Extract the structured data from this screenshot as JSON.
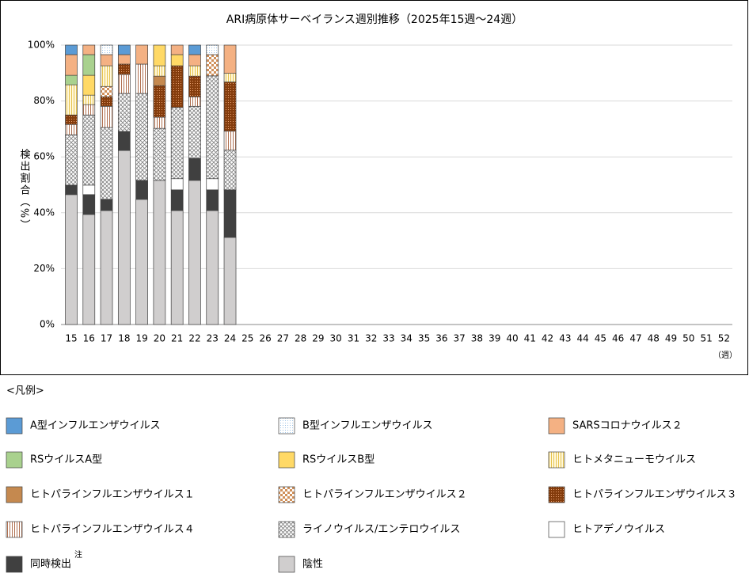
{
  "chart_data": {
    "type": "stacked_bar",
    "title": "ARI病原体サーベイランス週別推移（2025年15週～24週）",
    "y_label": "検出割合（%）",
    "x_unit": "（週）",
    "legend_title": "<凡例>",
    "legend_note": "注",
    "categories": [
      "15",
      "16",
      "17",
      "18",
      "19",
      "20",
      "21",
      "22",
      "23",
      "24",
      "25",
      "26",
      "27",
      "28",
      "29",
      "30",
      "31",
      "32",
      "33",
      "34",
      "35",
      "36",
      "37",
      "38",
      "39",
      "40",
      "41",
      "42",
      "43",
      "44",
      "45",
      "46",
      "47",
      "48",
      "49",
      "50",
      "51",
      "52"
    ],
    "ylim": [
      0,
      100
    ],
    "yticks": [
      {
        "value": 0,
        "label": "0%"
      },
      {
        "value": 20,
        "label": "20%"
      },
      {
        "value": 40,
        "label": "40%"
      },
      {
        "value": 60,
        "label": "60%"
      },
      {
        "value": 80,
        "label": "80%"
      },
      {
        "value": 100,
        "label": "100%"
      }
    ],
    "grid": true,
    "series": [
      {
        "name": "A型インフルエンザウイルス",
        "color": "#5b9bd5",
        "pattern": "solid",
        "values": [
          3.4,
          null,
          null,
          3.4,
          null,
          null,
          null,
          3.4,
          null,
          null,
          null,
          null,
          null,
          null,
          null,
          null,
          null,
          null,
          null,
          null,
          null,
          null,
          null,
          null,
          null,
          null,
          null,
          null,
          null,
          null,
          null,
          null,
          null,
          null,
          null,
          null,
          null,
          null
        ]
      },
      {
        "name": "B型インフルエンザウイルス",
        "color": "#9dc3e6",
        "pattern": "dots",
        "values": [
          null,
          null,
          3.4,
          null,
          null,
          null,
          null,
          null,
          3.4,
          null,
          null,
          null,
          null,
          null,
          null,
          null,
          null,
          null,
          null,
          null,
          null,
          null,
          null,
          null,
          null,
          null,
          null,
          null,
          null,
          null,
          null,
          null,
          null,
          null,
          null,
          null,
          null,
          null
        ]
      },
      {
        "name": "SARSコロナウイルス２",
        "color": "#f4b183",
        "pattern": "solid",
        "values": [
          7.4,
          3.4,
          4,
          3.4,
          6.8,
          null,
          3.4,
          4,
          null,
          10.1,
          null,
          null,
          null,
          null,
          null,
          null,
          null,
          null,
          null,
          null,
          null,
          null,
          null,
          null,
          null,
          null,
          null,
          null,
          null,
          null,
          null,
          null,
          null,
          null,
          null,
          null,
          null,
          null
        ]
      },
      {
        "name": "RSウイルスA型",
        "color": "#a9d18e",
        "pattern": "solid",
        "values": [
          3.4,
          7.4,
          null,
          null,
          null,
          null,
          null,
          null,
          null,
          null,
          null,
          null,
          null,
          null,
          null,
          null,
          null,
          null,
          null,
          null,
          null,
          null,
          null,
          null,
          null,
          null,
          null,
          null,
          null,
          null,
          null,
          null,
          null,
          null,
          null,
          null,
          null,
          null
        ]
      },
      {
        "name": "RSウイルスB型",
        "color": "#ffd966",
        "pattern": "solid",
        "values": [
          null,
          7.1,
          null,
          null,
          null,
          7.4,
          4,
          null,
          null,
          null,
          null,
          null,
          null,
          null,
          null,
          null,
          null,
          null,
          null,
          null,
          null,
          null,
          null,
          null,
          null,
          null,
          null,
          null,
          null,
          null,
          null,
          null,
          null,
          null,
          null,
          null,
          null,
          null
        ]
      },
      {
        "name": "ヒトメタニューモウイルス",
        "color": "#e6c24c",
        "pattern": "vlines-light",
        "values": [
          10.8,
          3.4,
          7.4,
          null,
          null,
          3.7,
          null,
          3.7,
          null,
          3.1,
          null,
          null,
          null,
          null,
          null,
          null,
          null,
          null,
          null,
          null,
          null,
          null,
          null,
          null,
          null,
          null,
          null,
          null,
          null,
          null,
          null,
          null,
          null,
          null,
          null,
          null,
          null,
          null
        ]
      },
      {
        "name": "ヒトパラインフルエンザウイルス１",
        "color": "#c5894f",
        "pattern": "solid",
        "values": [
          null,
          null,
          null,
          null,
          null,
          3.4,
          null,
          null,
          null,
          null,
          null,
          null,
          null,
          null,
          null,
          null,
          null,
          null,
          null,
          null,
          null,
          null,
          null,
          null,
          null,
          null,
          null,
          null,
          null,
          null,
          null,
          null,
          null,
          null,
          null,
          null,
          null,
          null
        ]
      },
      {
        "name": "ヒトパラインフルエンザウイルス２",
        "color": "#d0905a",
        "pattern": "checker",
        "values": [
          null,
          null,
          3.7,
          null,
          null,
          null,
          null,
          null,
          7.6,
          null,
          null,
          null,
          null,
          null,
          null,
          null,
          null,
          null,
          null,
          null,
          null,
          null,
          null,
          null,
          null,
          null,
          null,
          null,
          null,
          null,
          null,
          null,
          null,
          null,
          null,
          null,
          null,
          null
        ]
      },
      {
        "name": "ヒトパラインフルエンザウイルス３",
        "color": "#843c0c",
        "pattern": "darkdots",
        "values": [
          3.4,
          null,
          3.4,
          3.7,
          null,
          11.3,
          14.9,
          7.4,
          null,
          17.6,
          null,
          null,
          null,
          null,
          null,
          null,
          null,
          null,
          null,
          null,
          null,
          null,
          null,
          null,
          null,
          null,
          null,
          null,
          null,
          null,
          null,
          null,
          null,
          null,
          null,
          null,
          null,
          null
        ]
      },
      {
        "name": "ヒトパラインフルエンザウイルス４",
        "color": "#b07050",
        "pattern": "vlines",
        "values": [
          3.7,
          3.7,
          7.6,
          6.8,
          10.5,
          4,
          null,
          3.4,
          null,
          6.8,
          null,
          null,
          null,
          null,
          null,
          null,
          null,
          null,
          null,
          null,
          null,
          null,
          null,
          null,
          null,
          null,
          null,
          null,
          null,
          null,
          null,
          null,
          null,
          null,
          null,
          null,
          null,
          null
        ]
      },
      {
        "name": "ライノウイルス/エンテロウイルス",
        "color": "#808080",
        "pattern": "cross",
        "values": [
          18,
          25.1,
          25.7,
          13.6,
          31.1,
          18.6,
          25.5,
          18.6,
          36.8,
          14.2,
          null,
          null,
          null,
          null,
          null,
          null,
          null,
          null,
          null,
          null,
          null,
          null,
          null,
          null,
          null,
          null,
          null,
          null,
          null,
          null,
          null,
          null,
          null,
          null,
          null,
          null,
          null,
          null
        ]
      },
      {
        "name": "ヒトアデノウイルス",
        "color": "#ffffff",
        "pattern": "solid",
        "values": [
          null,
          3.4,
          null,
          null,
          null,
          null,
          4,
          null,
          4,
          null,
          null,
          null,
          null,
          null,
          null,
          null,
          null,
          null,
          null,
          null,
          null,
          null,
          null,
          null,
          null,
          null,
          null,
          null,
          null,
          null,
          null,
          null,
          null,
          null,
          null,
          null,
          null,
          null
        ]
      },
      {
        "name": "同時検出",
        "color": "#404040",
        "pattern": "solid",
        "values": [
          3.4,
          7.1,
          4,
          6.8,
          6.8,
          null,
          7.4,
          7.9,
          7.4,
          17,
          null,
          null,
          null,
          null,
          null,
          null,
          null,
          null,
          null,
          null,
          null,
          null,
          null,
          null,
          null,
          null,
          null,
          null,
          null,
          null,
          null,
          null,
          null,
          null,
          null,
          null,
          null,
          null
        ]
      },
      {
        "name": "陰性",
        "color": "#d0cece",
        "pattern": "solid",
        "values": [
          46.5,
          39.4,
          40.8,
          62.3,
          44.8,
          51.6,
          40.8,
          51.6,
          40.8,
          31.2,
          null,
          null,
          null,
          null,
          null,
          null,
          null,
          null,
          null,
          null,
          null,
          null,
          null,
          null,
          null,
          null,
          null,
          null,
          null,
          null,
          null,
          null,
          null,
          null,
          null,
          null,
          null,
          null
        ]
      }
    ]
  }
}
